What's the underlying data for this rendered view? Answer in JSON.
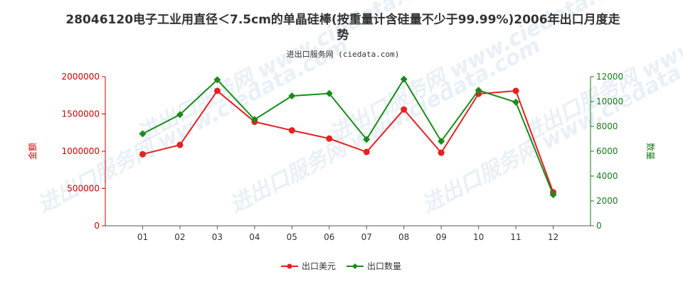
{
  "chart_data": {
    "type": "line",
    "title_line1": "28046120电子工业用直径＜7.5cm的单晶硅棒(按重量计含硅量不少于99.99%)2006年出口月度走",
    "title_line2": "势",
    "subtitle": "进出口服务网 (ciedata.com)",
    "watermark": "进出口服务网 www.ciedata.com",
    "categories": [
      "01",
      "02",
      "03",
      "04",
      "05",
      "06",
      "07",
      "08",
      "09",
      "10",
      "11",
      "12"
    ],
    "y_left": {
      "label": "金额",
      "ylim": [
        0,
        2000000
      ],
      "ticks": [
        "0",
        "500000",
        "1000000",
        "1500000",
        "2000000"
      ]
    },
    "y_right": {
      "label": "数量",
      "ylim": [
        0,
        12000
      ],
      "ticks": [
        "0",
        "2000",
        "4000",
        "6000",
        "8000",
        "10000",
        "12000"
      ]
    },
    "series": [
      {
        "name": "出口美元",
        "axis": "left",
        "color": "#e32222",
        "values": [
          960000,
          1085000,
          1810000,
          1395000,
          1280000,
          1170000,
          990000,
          1560000,
          980000,
          1770000,
          1810000,
          450000
        ]
      },
      {
        "name": "出口数量",
        "axis": "right",
        "color": "#1a8a1a",
        "values": [
          7400,
          8950,
          11750,
          8550,
          10450,
          10650,
          6950,
          11800,
          6800,
          10900,
          9950,
          2500
        ]
      }
    ],
    "grid": false,
    "legend": "bottom-center"
  }
}
